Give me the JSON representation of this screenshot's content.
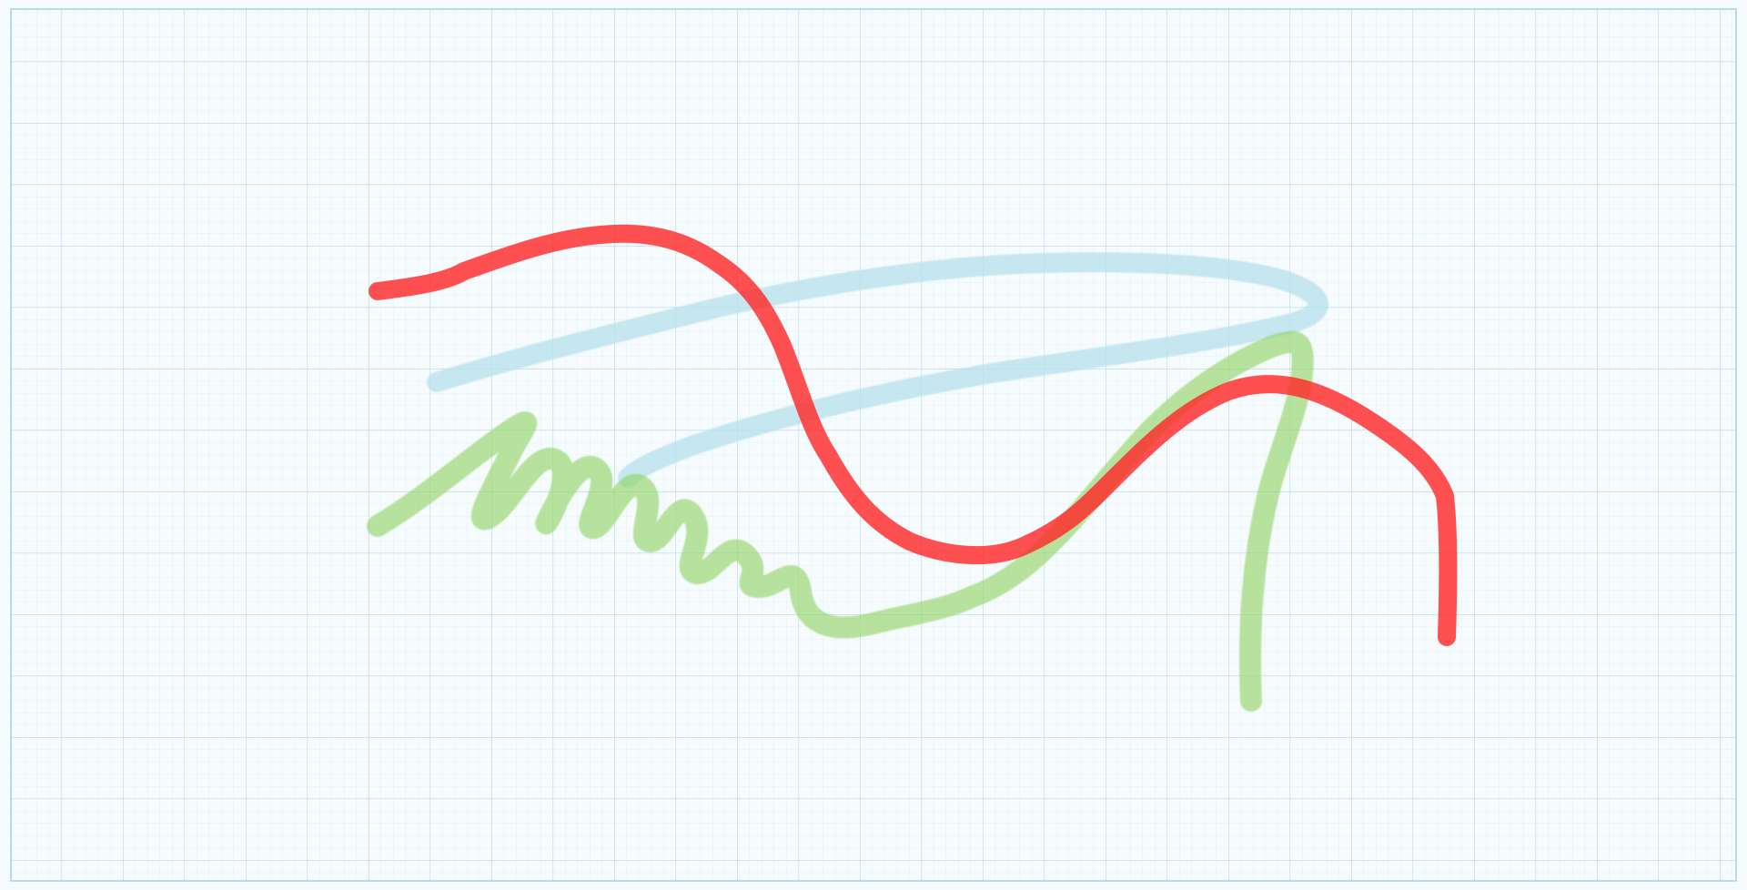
{
  "canvas": {
    "background": "#f6fbfd",
    "grid_major_color": "#b7d8e8",
    "grid_minor_color": "#d8ebf3",
    "border_color": "#a9cfe2"
  },
  "strokes": [
    {
      "name": "blue-loop-stroke",
      "color": "#b8e2ec",
      "opacity": 0.78,
      "style": "highlighter"
    },
    {
      "name": "green-coil-stroke",
      "color": "#8fd462",
      "opacity": 0.62,
      "style": "highlighter"
    },
    {
      "name": "red-wave-stroke",
      "color": "#ff2a2a",
      "opacity": 0.82,
      "style": "marker"
    }
  ]
}
